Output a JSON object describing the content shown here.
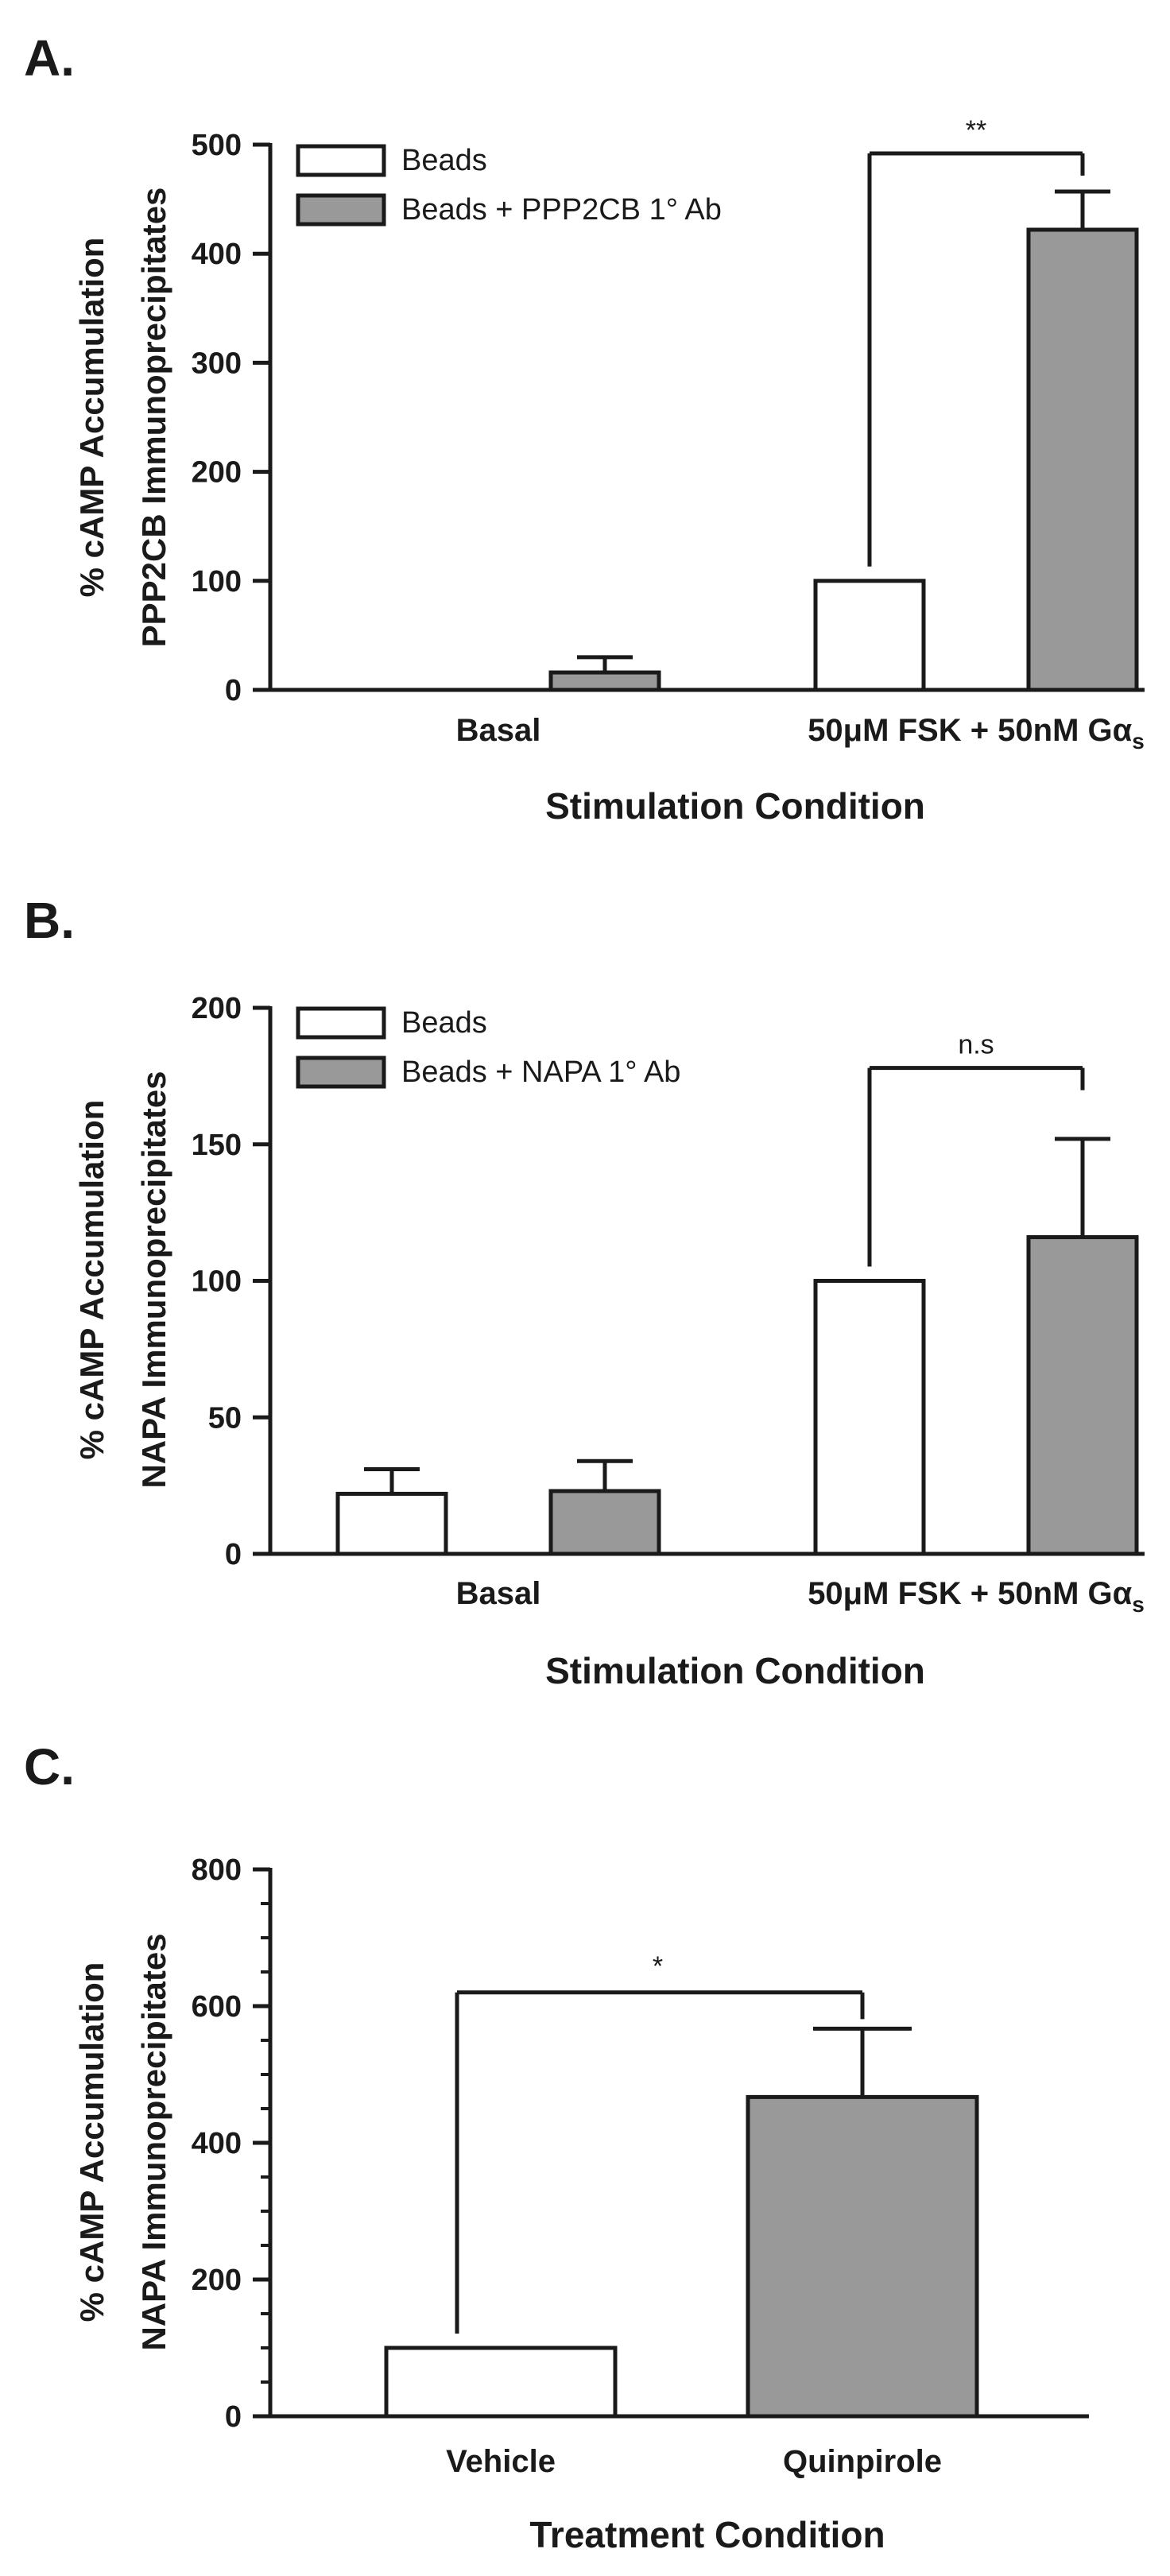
{
  "chart_data": [
    {
      "id": "A",
      "type": "bar",
      "panel_label": "A.",
      "ylabel": [
        "% cAMP Accumulation",
        "PPP2CB Immunoprecipitates"
      ],
      "xlabel": "Stimulation Condition",
      "ylim": [
        0,
        500
      ],
      "yticks": [
        0,
        100,
        200,
        300,
        400,
        500
      ],
      "categories": [
        {
          "label": "Basal"
        },
        {
          "label": "50μM FSK + 50nM Gα",
          "subscript": "s"
        }
      ],
      "series": [
        {
          "name": "Beads",
          "color": "#ffffff",
          "values": [
            0,
            100
          ],
          "errors": [
            0,
            0
          ]
        },
        {
          "name": "Beads + PPP2CB 1° Ab",
          "color": "#999999",
          "values": [
            16,
            422
          ],
          "errors": [
            14,
            35
          ]
        }
      ],
      "annotations": [
        {
          "text": "**",
          "category": 1,
          "from_series": 0,
          "to_series": 1,
          "y": 492
        }
      ],
      "legend_position": "top-left"
    },
    {
      "id": "B",
      "type": "bar",
      "panel_label": "B.",
      "ylabel": [
        "% cAMP Accumulation",
        "NAPA Immunoprecipitates"
      ],
      "xlabel": "Stimulation Condition",
      "ylim": [
        0,
        200
      ],
      "yticks": [
        0,
        50,
        100,
        150,
        200
      ],
      "categories": [
        {
          "label": "Basal"
        },
        {
          "label": "50μM FSK + 50nM Gα",
          "subscript": "s"
        }
      ],
      "series": [
        {
          "name": "Beads",
          "color": "#ffffff",
          "values": [
            22,
            100
          ],
          "errors": [
            9,
            0
          ]
        },
        {
          "name": "Beads + NAPA 1° Ab",
          "color": "#999999",
          "values": [
            23,
            116
          ],
          "errors": [
            11,
            36
          ]
        }
      ],
      "annotations": [
        {
          "text": "n.s",
          "category": 1,
          "from_series": 0,
          "to_series": 1,
          "y": 178
        }
      ],
      "legend_position": "top-left"
    },
    {
      "id": "C",
      "type": "bar",
      "panel_label": "C.",
      "ylabel": [
        "% cAMP Accumulation",
        "NAPA Immunoprecipitates"
      ],
      "xlabel": "Treatment Condition",
      "ylim": [
        0,
        800
      ],
      "yticks": [
        0,
        200,
        400,
        600,
        800
      ],
      "categories": [
        {
          "label": "Vehicle"
        },
        {
          "label": "Quinpirole"
        }
      ],
      "series": [
        {
          "name": "",
          "values": [
            100,
            467
          ],
          "errors": [
            0,
            100
          ],
          "colors": [
            "#ffffff",
            "#999999"
          ]
        }
      ],
      "annotations": [
        {
          "text": "*",
          "from_category": 0,
          "to_category": 1,
          "y": 620
        }
      ]
    }
  ]
}
